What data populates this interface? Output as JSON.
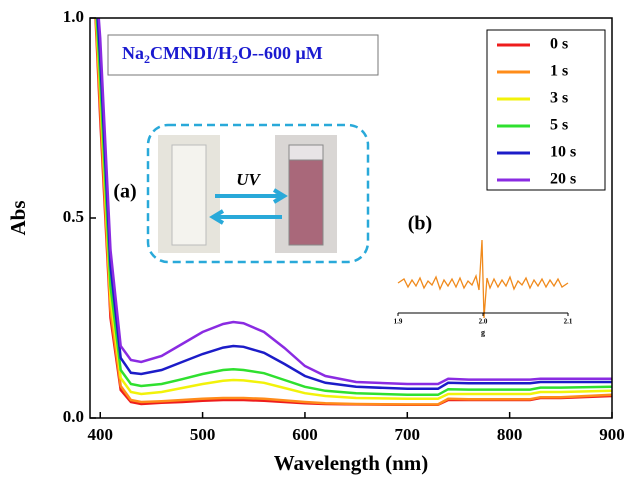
{
  "chart_data": {
    "type": "line",
    "xlabel": "Wavelength (nm)",
    "ylabel": "Abs",
    "xlim": [
      390,
      900
    ],
    "ylim": [
      0,
      1
    ],
    "xticks": [
      400,
      500,
      600,
      700,
      800,
      900
    ],
    "yticks": [
      {
        "value": 0,
        "label": "0.0"
      },
      0.5,
      {
        "value": 1,
        "label": "1.0"
      }
    ],
    "legend": "upper right",
    "x": [
      390,
      400,
      410,
      420,
      430,
      440,
      460,
      480,
      500,
      520,
      530,
      540,
      560,
      580,
      600,
      620,
      650,
      700,
      730,
      740,
      760,
      800,
      820,
      830,
      850,
      900
    ],
    "series": [
      {
        "name": "0 s",
        "color": "#ee1c1c",
        "values": [
          1.3,
          0.75,
          0.25,
          0.07,
          0.04,
          0.035,
          0.038,
          0.04,
          0.043,
          0.045,
          0.045,
          0.045,
          0.043,
          0.04,
          0.037,
          0.035,
          0.034,
          0.033,
          0.033,
          0.045,
          0.045,
          0.045,
          0.045,
          0.05,
          0.05,
          0.055
        ]
      },
      {
        "name": "1 s",
        "color": "#ff8c1a",
        "values": [
          1.3,
          0.78,
          0.27,
          0.08,
          0.045,
          0.04,
          0.042,
          0.045,
          0.048,
          0.05,
          0.05,
          0.05,
          0.048,
          0.044,
          0.04,
          0.037,
          0.035,
          0.034,
          0.034,
          0.048,
          0.047,
          0.047,
          0.047,
          0.052,
          0.052,
          0.058
        ]
      },
      {
        "name": "3 s",
        "color": "#f2f20a",
        "values": [
          1.3,
          0.82,
          0.3,
          0.1,
          0.065,
          0.06,
          0.065,
          0.075,
          0.085,
          0.093,
          0.095,
          0.094,
          0.088,
          0.075,
          0.062,
          0.055,
          0.05,
          0.048,
          0.048,
          0.06,
          0.06,
          0.06,
          0.06,
          0.065,
          0.065,
          0.068
        ]
      },
      {
        "name": "5 s",
        "color": "#2fe02f",
        "values": [
          1.3,
          0.85,
          0.33,
          0.12,
          0.085,
          0.08,
          0.085,
          0.097,
          0.11,
          0.12,
          0.122,
          0.12,
          0.112,
          0.095,
          0.078,
          0.068,
          0.062,
          0.058,
          0.058,
          0.072,
          0.071,
          0.071,
          0.071,
          0.076,
          0.076,
          0.078
        ]
      },
      {
        "name": "10 s",
        "color": "#1c1cc8",
        "values": [
          1.3,
          0.9,
          0.38,
          0.15,
          0.113,
          0.11,
          0.12,
          0.14,
          0.16,
          0.176,
          0.18,
          0.178,
          0.163,
          0.135,
          0.105,
          0.088,
          0.078,
          0.073,
          0.073,
          0.088,
          0.087,
          0.087,
          0.087,
          0.09,
          0.09,
          0.09
        ]
      },
      {
        "name": "20 s",
        "color": "#8a2be2",
        "values": [
          1.3,
          0.95,
          0.42,
          0.18,
          0.145,
          0.14,
          0.155,
          0.185,
          0.215,
          0.235,
          0.24,
          0.237,
          0.215,
          0.175,
          0.13,
          0.105,
          0.09,
          0.085,
          0.085,
          0.098,
          0.096,
          0.096,
          0.096,
          0.098,
          0.098,
          0.098
        ]
      }
    ],
    "title": [
      "Na",
      "2",
      "CMNDI/H",
      "2",
      "O--600 μM"
    ],
    "annotations": [
      "(a)",
      "UV",
      "(b)"
    ],
    "inset": {
      "xlim": [
        1.9,
        2.1
      ],
      "xticks": [
        1.9,
        {
          "value": 2,
          "label": "2.0"
        },
        2.1
      ],
      "xlabel": "g"
    }
  }
}
